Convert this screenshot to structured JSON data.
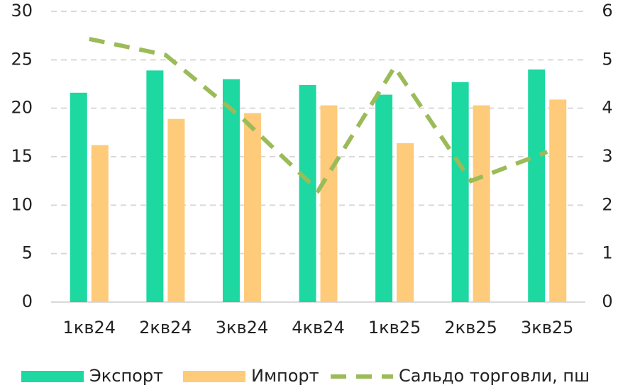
{
  "chart_data": {
    "type": "bar",
    "categories": [
      "1кв24",
      "2кв24",
      "3кв24",
      "4кв24",
      "1кв25",
      "2кв25",
      "3кв25"
    ],
    "series": [
      {
        "name": "Экспорт",
        "color": "#1dd8a0",
        "values": [
          21.6,
          23.9,
          23.0,
          22.4,
          21.4,
          22.7,
          24.0
        ]
      },
      {
        "name": "Импорт",
        "color": "#fdcb7a",
        "values": [
          16.2,
          18.9,
          19.5,
          20.3,
          16.4,
          20.3,
          20.9
        ]
      },
      {
        "name": "Сальдо торговли, пш",
        "color": "#9bbb59",
        "type": "line",
        "axis": "y2",
        "values": [
          5.43,
          5.1,
          3.8,
          2.3,
          4.85,
          2.5,
          3.1
        ]
      }
    ],
    "ylim": [
      0,
      30
    ],
    "yticks": [
      0,
      5,
      10,
      15,
      20,
      25,
      30
    ],
    "y2lim": [
      0,
      6
    ],
    "y2ticks": [
      0,
      1,
      2,
      3,
      4,
      5,
      6
    ],
    "grid": true,
    "legend": "bottom"
  }
}
